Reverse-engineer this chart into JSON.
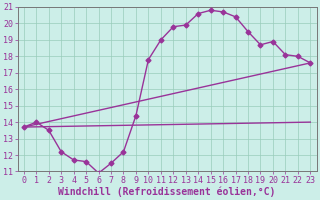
{
  "xlabel": "Windchill (Refroidissement éolien,°C)",
  "bg_color": "#cceee8",
  "line_color": "#993399",
  "grid_color": "#99ccbb",
  "xlim": [
    -0.5,
    23.5
  ],
  "ylim": [
    11,
    21
  ],
  "xticks": [
    0,
    1,
    2,
    3,
    4,
    5,
    6,
    7,
    8,
    9,
    10,
    11,
    12,
    13,
    14,
    15,
    16,
    17,
    18,
    19,
    20,
    21,
    22,
    23
  ],
  "yticks": [
    11,
    12,
    13,
    14,
    15,
    16,
    17,
    18,
    19,
    20,
    21
  ],
  "line1_x": [
    0,
    1,
    2,
    3,
    4,
    5,
    6,
    7,
    8,
    9,
    10,
    11,
    12,
    13,
    14,
    15,
    16,
    17,
    18,
    19,
    20,
    21,
    22,
    23
  ],
  "line1_y": [
    13.7,
    14.0,
    13.5,
    12.2,
    11.7,
    11.6,
    10.9,
    11.5,
    12.2,
    14.4,
    17.8,
    19.0,
    19.8,
    19.9,
    20.6,
    20.8,
    20.7,
    20.4,
    19.5,
    18.7,
    18.9,
    18.1,
    18.0,
    17.6
  ],
  "line2_x": [
    0,
    23
  ],
  "line2_y": [
    13.7,
    17.6
  ],
  "line3_x": [
    0,
    23
  ],
  "line3_y": [
    13.7,
    14.0
  ],
  "marker": "D",
  "markersize": 2.5,
  "linewidth": 1.0,
  "tick_fontsize": 6,
  "xlabel_fontsize": 7
}
